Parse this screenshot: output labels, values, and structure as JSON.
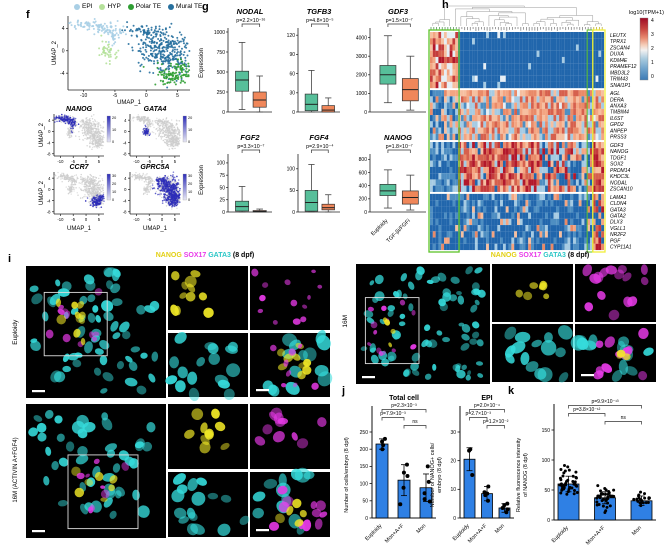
{
  "panels": {
    "f": "f",
    "g": "g",
    "h": "h",
    "i": "i",
    "j": "j",
    "k": "k"
  },
  "colors": {
    "epi": "#a9cfe5",
    "hyp": "#b5e19a",
    "polar_te": "#2f9e33",
    "mural_te": "#27709e",
    "box_green": "#57bf9a",
    "box_orange": "#f0875a",
    "bar_blue": "#2f80e4",
    "nanog_yellow": "#f2e926",
    "sox17_magenta": "#e93ae9",
    "gata3_cyan": "#35dbdb",
    "feature_blue": "#2d2db8",
    "gray_point": "#cdcdcd"
  },
  "panel_f": {
    "legend": [
      {
        "label": "EPI",
        "color": "#a9cfe5"
      },
      {
        "label": "HYP",
        "color": "#b5e19a"
      },
      {
        "label": "Polar TE",
        "color": "#2f9e33"
      },
      {
        "label": "Mural TE",
        "color": "#27709e"
      }
    ],
    "axis": {
      "x": "UMAP_1",
      "y": "UMAP_2",
      "xticks": [
        -10,
        -5,
        0,
        5
      ],
      "yticks_main": [
        4,
        0,
        -4
      ],
      "yticks_feature": [
        4,
        0,
        -4,
        -8
      ]
    }
  },
  "panel_g": {
    "ylabel": "Expression"
  },
  "panel_i": {
    "title_segments": [
      {
        "text": "NANOG",
        "color": "#e3d012"
      },
      {
        "text": " SOX17",
        "color": "#e93ae9"
      },
      {
        "text": " GATA3",
        "color": "#2bc7c7"
      },
      {
        "text": " (8 dpf)",
        "color": "#000000"
      }
    ],
    "left_rows": [
      "Euploidy",
      "16M (ACTIVIN A+FGF4)"
    ],
    "right_label": "16M"
  },
  "chart_data": [
    {
      "id": "umap_lineages",
      "type": "scatter",
      "xlabel": "UMAP_1",
      "ylabel": "UMAP_2",
      "clusters": [
        "EPI",
        "HYP",
        "Polar TE",
        "Mural TE"
      ],
      "feature_plots": [
        {
          "gene": "NANOG",
          "highlight": [
            "EPI"
          ],
          "scale_ticks": [
            20,
            10,
            0
          ]
        },
        {
          "gene": "GATA4",
          "highlight": [
            "HYP"
          ],
          "scale_ticks": [
            20,
            10,
            0
          ]
        },
        {
          "gene": "CCR7",
          "highlight": [
            "Polar TE"
          ],
          "scale_ticks": [
            30,
            20,
            10,
            0
          ]
        },
        {
          "gene": "GPRC5A",
          "highlight": [
            "Mural TE",
            "Polar TE"
          ],
          "scale_ticks": [
            30,
            20,
            10,
            0
          ]
        }
      ]
    },
    {
      "id": "expression_boxplots",
      "type": "box",
      "ylabel": "Expression",
      "groups": [
        "Euploidy",
        "TGF-βi/FGFi"
      ],
      "plots": [
        {
          "gene": "NODAL",
          "p": "p=2.2×10⁻¹⁶",
          "ylim": [
            0,
            1000
          ],
          "yticks": [
            0,
            250,
            500,
            750,
            1000
          ],
          "boxes": [
            {
              "lo": 30,
              "q1": 260,
              "med": 400,
              "q3": 510,
              "hi": 870
            },
            {
              "lo": 0,
              "q1": 60,
              "med": 150,
              "q3": 250,
              "hi": 450
            }
          ]
        },
        {
          "gene": "TGFB3",
          "p": "p=4.8×10⁻⁵",
          "ylim": [
            0,
            125
          ],
          "yticks": [
            0,
            30,
            60,
            90,
            120
          ],
          "boxes": [
            {
              "lo": 0,
              "q1": 2,
              "med": 12,
              "q3": 28,
              "hi": 65
            },
            {
              "lo": 0,
              "q1": 0,
              "med": 3,
              "q3": 10,
              "hi": 22
            }
          ]
        },
        {
          "gene": "GDF3",
          "p": "p=1.5×10⁻⁷",
          "ylim": [
            0,
            4300
          ],
          "yticks": [
            0,
            1000,
            2000,
            3000,
            4000
          ],
          "boxes": [
            {
              "lo": 500,
              "q1": 1500,
              "med": 2000,
              "q3": 2500,
              "hi": 4100
            },
            {
              "lo": 100,
              "q1": 600,
              "med": 1200,
              "q3": 1800,
              "hi": 3000
            }
          ]
        },
        {
          "gene": "FGF2",
          "p": "p=3.3×10⁻⁷",
          "ylim": [
            0,
            110
          ],
          "yticks": [
            0,
            25,
            50,
            75,
            100
          ],
          "boxes": [
            {
              "lo": 0,
              "q1": 2,
              "med": 11,
              "q3": 22,
              "hi": 52
            },
            {
              "lo": 0,
              "q1": 0,
              "med": 1,
              "q3": 3,
              "hi": 6
            }
          ]
        },
        {
          "gene": "FGF4",
          "p": "p=2.9×10⁻⁴",
          "ylim": [
            0,
            125
          ],
          "yticks": [
            0,
            50,
            100
          ],
          "boxes": [
            {
              "lo": 0,
              "q1": 2,
              "med": 22,
              "q3": 50,
              "hi": 110
            },
            {
              "lo": 0,
              "q1": 5,
              "med": 10,
              "q3": 18,
              "hi": 40
            }
          ]
        },
        {
          "gene": "NANOG",
          "p": "p=1.8×10⁻⁷",
          "ylim": [
            0,
            820
          ],
          "yticks": [
            0,
            200,
            400,
            600,
            800
          ],
          "boxes": [
            {
              "lo": 60,
              "q1": 250,
              "med": 320,
              "q3": 420,
              "hi": 640
            },
            {
              "lo": 30,
              "q1": 120,
              "med": 220,
              "q3": 320,
              "hi": 560
            }
          ]
        }
      ]
    },
    {
      "id": "lineage_heatmap",
      "type": "heatmap",
      "colorbar_title": "log10(TPM+1)",
      "colorbar_ticks": [
        4,
        3,
        2,
        1,
        0
      ],
      "row_groups": [
        [
          "LEUTX",
          "TPRX1",
          "ZSCAN4",
          "DUXA",
          "KDM4E",
          "PRAMEF12",
          "MBD3L2",
          "TRIM43",
          "SNAI1P1"
        ],
        [
          "AGL",
          "DERA",
          "ANXA3",
          "TMBIM4",
          "IL6ST",
          "GPD2",
          "ANPEP",
          "PRSS3"
        ],
        [
          "GDF3",
          "NANOG",
          "TDGF1",
          "SOX2",
          "PRDM14",
          "KHDC3L",
          "NODAL",
          "ZSCAN10"
        ],
        [
          "LAMA1",
          "CLDN4",
          "GATA3",
          "GATA2",
          "DLX3",
          "VGLL1",
          "NR2F2",
          "PGF",
          "CYP11A1"
        ]
      ]
    },
    {
      "id": "total_cell",
      "type": "bar",
      "title": "Total cell",
      "ylabel_lines": [
        "Number of cells/embryo (8 dpf)"
      ],
      "ylim": [
        0,
        250
      ],
      "yticks": [
        0,
        50,
        100,
        150,
        200,
        250
      ],
      "categories": [
        "Euploidy",
        "Mon+A+F",
        "Mon"
      ],
      "values": [
        215,
        110,
        88
      ],
      "errors": [
        15,
        45,
        40
      ],
      "points": [
        [
          230,
          222,
          212,
          200
        ],
        [
          155,
          132,
          122,
          88,
          40
        ],
        [
          150,
          105,
          72,
          55,
          48
        ]
      ],
      "brackets": [
        {
          "from": 0,
          "to": 2,
          "label": "p=2.3×10⁻³"
        },
        {
          "from": 0,
          "to": 1,
          "label": "p=7.9×10⁻³"
        },
        {
          "from": 1,
          "to": 2,
          "label": "ns"
        }
      ]
    },
    {
      "id": "epi_cells",
      "type": "bar",
      "title": "EPI",
      "ylabel_lines": [
        "Number of NANOG+ cells/",
        "embryo (8 dpf)"
      ],
      "ylim": [
        0,
        30
      ],
      "yticks": [
        0,
        10,
        20,
        30
      ],
      "categories": [
        "Euploidy",
        "Mon+A+F",
        "Mon"
      ],
      "values": [
        20.5,
        8.5,
        3.5
      ],
      "errors": [
        4,
        2.5,
        1.5
      ],
      "points": [
        [
          24,
          23.5,
          15
        ],
        [
          11,
          9,
          8.5,
          8,
          6
        ],
        [
          5,
          4.5,
          3.5,
          3,
          2
        ]
      ],
      "brackets": [
        {
          "from": 0,
          "to": 2,
          "label": "p=2.0×10⁻⁴"
        },
        {
          "from": 0,
          "to": 1,
          "label": "p=2.7×10⁻³"
        },
        {
          "from": 1,
          "to": 2,
          "label": "p=1.2×10⁻²"
        }
      ]
    },
    {
      "id": "nanog_intensity",
      "type": "bar",
      "title": "",
      "ylabel_lines": [
        "Relative fluorescence intensity",
        "of NANOG (8 dpf)"
      ],
      "ylim": [
        0,
        150
      ],
      "yticks": [
        0,
        50,
        100,
        150
      ],
      "categories": [
        "Euploidy",
        "Mon+A+F",
        "Mon"
      ],
      "values": [
        60,
        37,
        32
      ],
      "errors": [
        13,
        10,
        8
      ],
      "scatter": {
        "n": [
          42,
          36,
          20
        ],
        "sd": [
          13,
          9,
          7
        ]
      },
      "brackets": [
        {
          "from": 0,
          "to": 2,
          "label": "p=9.9×10⁻¹³"
        },
        {
          "from": 0,
          "to": 1,
          "label": "p=3.8×10⁻¹²"
        },
        {
          "from": 1,
          "to": 2,
          "label": "ns"
        }
      ]
    }
  ]
}
